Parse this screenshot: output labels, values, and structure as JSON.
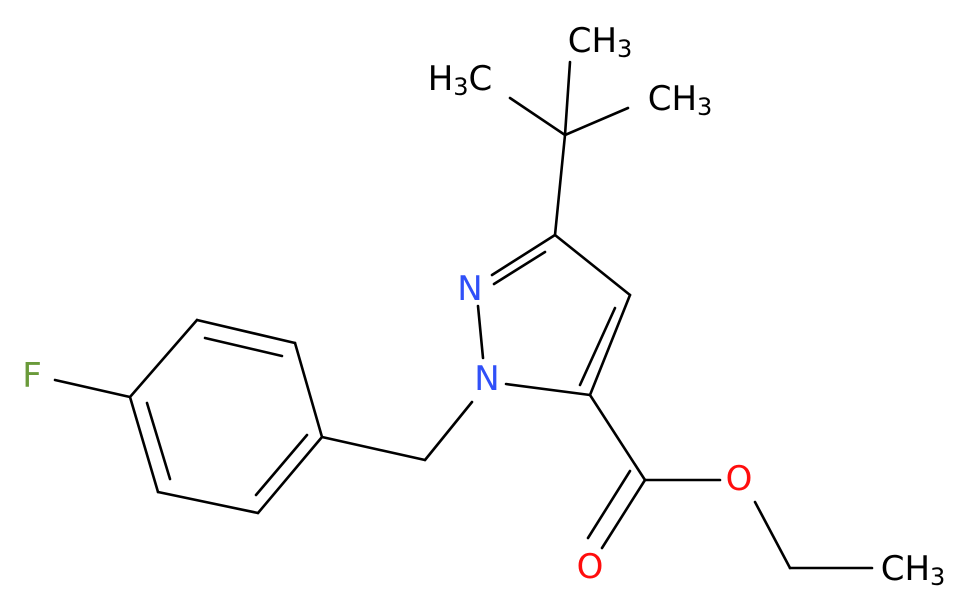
{
  "atoms": [
    {
      "parts": [
        {
          "text": "C"
        },
        {
          "text": "H"
        },
        {
          "text": "3",
          "sub": true
        }
      ],
      "color": "#000000"
    },
    {
      "parts": [
        {
          "text": "H"
        },
        {
          "text": "3",
          "sub": true
        },
        {
          "text": "C"
        }
      ],
      "color": "#000000"
    },
    {
      "parts": [
        {
          "text": "C"
        },
        {
          "text": "H"
        },
        {
          "text": "3",
          "sub": true
        }
      ],
      "color": "#000000"
    },
    {
      "parts": [
        {
          "text": "N"
        }
      ],
      "color": "#3050F8"
    },
    {
      "parts": [
        {
          "text": "N"
        }
      ],
      "color": "#3050F8"
    },
    {
      "parts": [
        {
          "text": "F"
        }
      ],
      "color": "#6a9a3a"
    },
    {
      "parts": [
        {
          "text": "O"
        }
      ],
      "color": "#FF0D0D"
    },
    {
      "parts": [
        {
          "text": "O"
        }
      ],
      "color": "#FF0D0D"
    },
    {
      "parts": [
        {
          "text": "C"
        },
        {
          "text": "H"
        },
        {
          "text": "3",
          "sub": true
        }
      ],
      "color": "#000000"
    }
  ]
}
